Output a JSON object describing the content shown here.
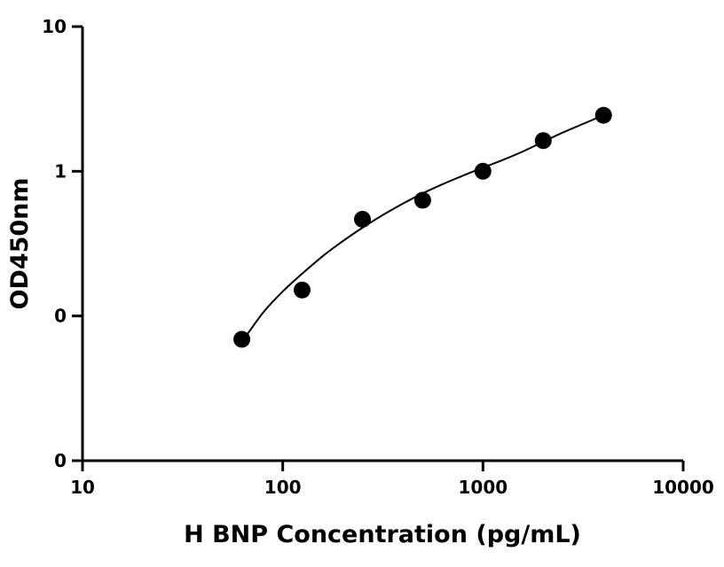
{
  "chart_data": {
    "type": "scatter",
    "title": "",
    "xlabel": "H BNP Concentration (pg/mL)",
    "ylabel": "OD450nm",
    "x_scale": "log",
    "y_scale": "log",
    "xlim": [
      10,
      10000
    ],
    "ylim": [
      0.01,
      10
    ],
    "x_ticks": [
      {
        "value": 10,
        "label": "10"
      },
      {
        "value": 100,
        "label": "100"
      },
      {
        "value": 1000,
        "label": "1000"
      },
      {
        "value": 10000,
        "label": "10000"
      }
    ],
    "y_ticks": [
      {
        "value": 0.01,
        "label": "0"
      },
      {
        "value": 0.1,
        "label": "0"
      },
      {
        "value": 1,
        "label": "1"
      },
      {
        "value": 10,
        "label": "10"
      }
    ],
    "grid": false,
    "legend": false,
    "series": [
      {
        "points": [
          {
            "x": 62.5,
            "y": 0.069
          },
          {
            "x": 125,
            "y": 0.151
          },
          {
            "x": 250,
            "y": 0.466
          },
          {
            "x": 500,
            "y": 0.631
          },
          {
            "x": 1000,
            "y": 1.0
          },
          {
            "x": 2000,
            "y": 1.63
          },
          {
            "x": 4000,
            "y": 2.44
          }
        ],
        "color": "#000000"
      }
    ],
    "fit_curve": {
      "color": "#000000",
      "points": [
        {
          "x": 62.5,
          "y": 0.066
        },
        {
          "x": 80,
          "y": 0.106
        },
        {
          "x": 100,
          "y": 0.148
        },
        {
          "x": 125,
          "y": 0.196
        },
        {
          "x": 160,
          "y": 0.262
        },
        {
          "x": 200,
          "y": 0.33
        },
        {
          "x": 250,
          "y": 0.407
        },
        {
          "x": 315,
          "y": 0.497
        },
        {
          "x": 400,
          "y": 0.6
        },
        {
          "x": 500,
          "y": 0.704
        },
        {
          "x": 630,
          "y": 0.815
        },
        {
          "x": 800,
          "y": 0.937
        },
        {
          "x": 1000,
          "y": 1.06
        },
        {
          "x": 1260,
          "y": 1.2
        },
        {
          "x": 1600,
          "y": 1.38
        },
        {
          "x": 2000,
          "y": 1.6
        },
        {
          "x": 2500,
          "y": 1.85
        },
        {
          "x": 3150,
          "y": 2.12
        },
        {
          "x": 4000,
          "y": 2.44
        }
      ]
    }
  }
}
